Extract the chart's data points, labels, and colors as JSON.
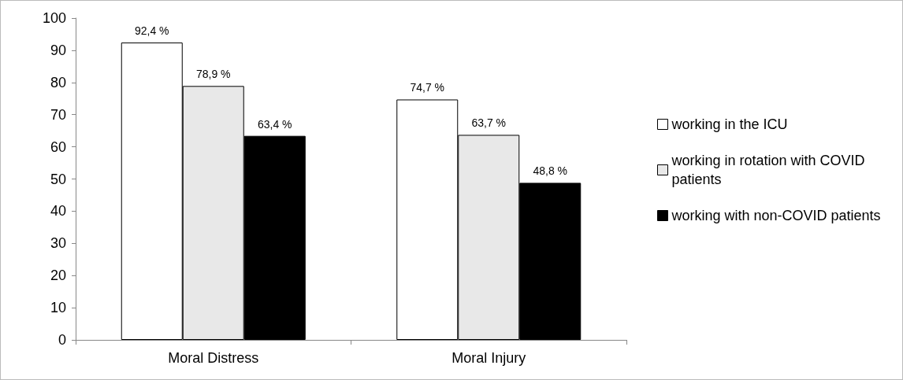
{
  "chart_data": {
    "type": "bar",
    "categories": [
      "Moral Distress",
      "Moral Injury"
    ],
    "series": [
      {
        "name": "working in the ICU",
        "color": "#ffffff",
        "values": [
          92.4,
          74.7
        ],
        "value_labels": [
          "92,4 %",
          "74,7 %"
        ]
      },
      {
        "name": "working in rotation with COVID patients",
        "color": "#e8e8e8",
        "values": [
          78.9,
          63.7
        ],
        "value_labels": [
          "78,9 %",
          "63,7 %"
        ]
      },
      {
        "name": "working with non-COVID patients",
        "color": "#000000",
        "values": [
          63.4,
          48.8
        ],
        "value_labels": [
          "63,4 %",
          "48,8 %"
        ]
      }
    ],
    "ylim": [
      0,
      100
    ],
    "yticks": [
      0,
      10,
      20,
      30,
      40,
      50,
      60,
      70,
      80,
      90,
      100
    ],
    "grid": false,
    "legend": "right"
  }
}
